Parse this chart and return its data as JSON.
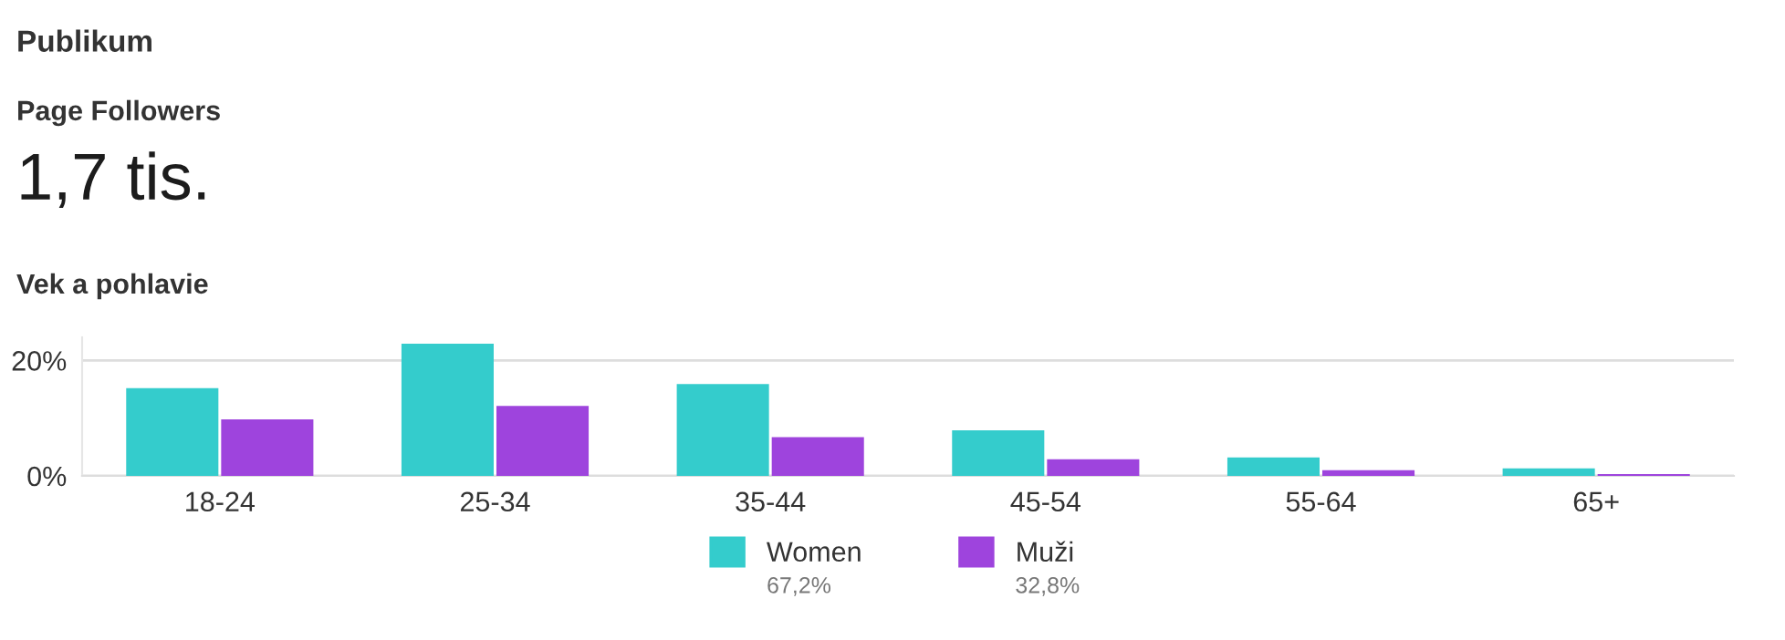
{
  "chart_data": {
    "type": "bar",
    "title": "Vek a pohlavie",
    "categories": [
      "18-24",
      "25-34",
      "35-44",
      "45-54",
      "55-64",
      "65+"
    ],
    "series": [
      {
        "name": "Women",
        "color": "#34cccc",
        "values": [
          15.2,
          22.9,
          15.9,
          7.9,
          3.2,
          1.3
        ]
      },
      {
        "name": "Muži",
        "color": "#9e44dd",
        "values": [
          9.8,
          12.1,
          6.7,
          2.9,
          1.0,
          0.3
        ]
      }
    ],
    "ylim": [
      0,
      24
    ],
    "yticks": [
      {
        "value": 0,
        "label": "0%"
      },
      {
        "value": 20,
        "label": "20%"
      }
    ],
    "grid": "y",
    "legend": "bottom",
    "annotations": [
      "Publikum",
      "Page Followers",
      "1,7 tis.",
      "67,2%",
      "32,8%"
    ]
  }
}
